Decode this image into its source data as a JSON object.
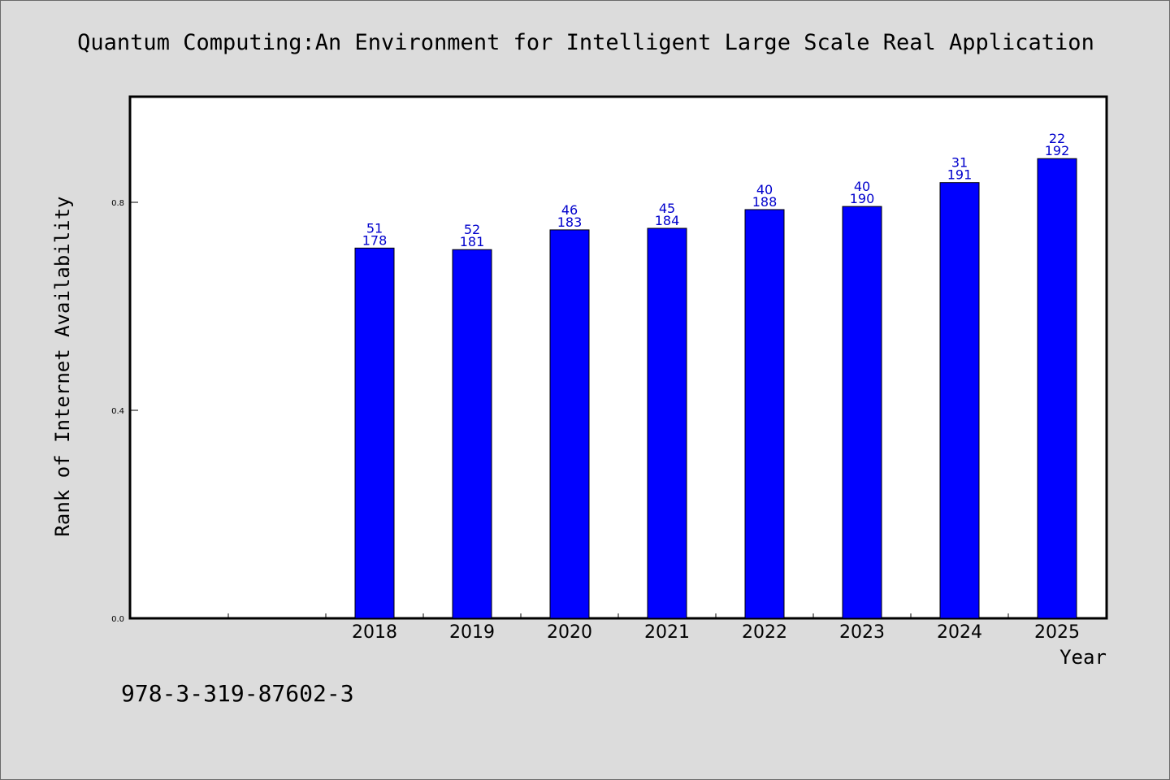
{
  "chart_data": {
    "type": "bar",
    "title": "Quantum Computing:An Environment for Intelligent Large Scale Real Application",
    "xlabel": "Year",
    "ylabel": "Rank of Internet Availability",
    "categories": [
      "2018",
      "2019",
      "2020",
      "2021",
      "2022",
      "2023",
      "2024",
      "2025"
    ],
    "values": [
      0.712,
      0.709,
      0.747,
      0.75,
      0.786,
      0.792,
      0.838,
      0.884
    ],
    "label_top": [
      "51",
      "52",
      "46",
      "45",
      "40",
      "40",
      "31",
      "22"
    ],
    "label_bottom": [
      "178",
      "181",
      "183",
      "184",
      "188",
      "190",
      "191",
      "192"
    ],
    "ylim": [
      0,
      1.0
    ],
    "yticks": [
      "0.0",
      "0.4",
      "0.8"
    ],
    "bar_color": "#0000ff",
    "label_color": "#0000cc",
    "grid": false,
    "legend": "none"
  },
  "footer": {
    "isbn": "978-3-319-87602-3"
  }
}
